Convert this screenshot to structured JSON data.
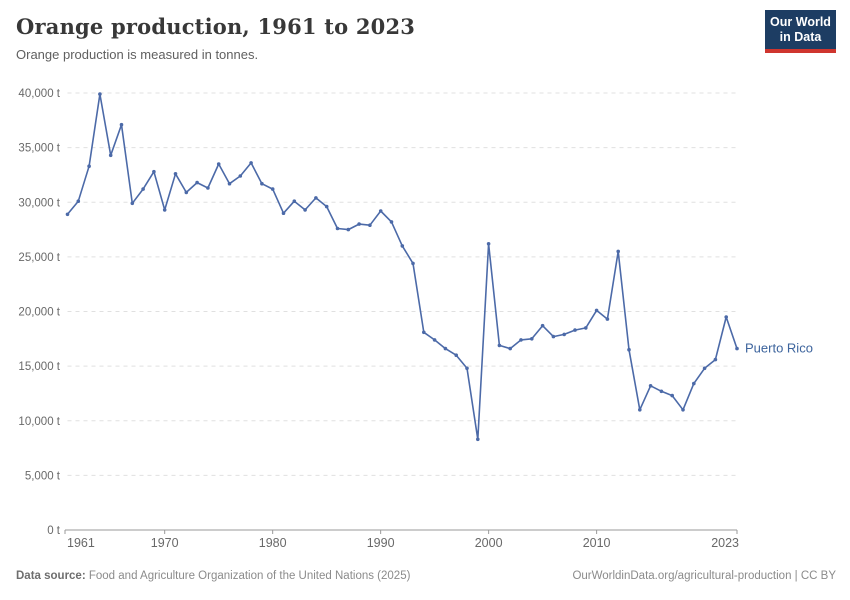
{
  "header": {
    "title": "Orange production, 1961 to 2023",
    "subtitle": "Orange production is measured in tonnes."
  },
  "logo": {
    "line1": "Our World",
    "line2": "in Data",
    "bg_color": "#1d3d63",
    "accent_color": "#cf352e"
  },
  "chart_data": {
    "type": "line",
    "title": "Orange production, 1961 to 2023",
    "unit": "t",
    "grid": "dashed-horizontal",
    "ylim": [
      0,
      40000
    ],
    "ytick_step": 5000,
    "xticks": [
      1961,
      1970,
      1980,
      1990,
      2000,
      2010,
      2023
    ],
    "x": [
      1961,
      1962,
      1963,
      1964,
      1965,
      1966,
      1967,
      1968,
      1969,
      1970,
      1971,
      1972,
      1973,
      1974,
      1975,
      1976,
      1977,
      1978,
      1979,
      1980,
      1981,
      1982,
      1983,
      1984,
      1985,
      1986,
      1987,
      1988,
      1989,
      1990,
      1991,
      1992,
      1993,
      1994,
      1995,
      1996,
      1997,
      1998,
      1999,
      2000,
      2001,
      2002,
      2003,
      2004,
      2005,
      2006,
      2007,
      2008,
      2009,
      2010,
      2011,
      2012,
      2013,
      2014,
      2015,
      2016,
      2017,
      2018,
      2019,
      2020,
      2021,
      2022,
      2023
    ],
    "series": [
      {
        "name": "Puerto Rico",
        "color": "#4c6aa8",
        "label_color": "#3d649d",
        "values": [
          28900,
          30100,
          33300,
          39900,
          34300,
          37100,
          29900,
          31200,
          32800,
          29300,
          32600,
          30900,
          31800,
          31300,
          33500,
          31700,
          32400,
          33600,
          31700,
          31200,
          29000,
          30100,
          29300,
          30400,
          29600,
          27600,
          27500,
          28000,
          27900,
          29200,
          28200,
          26000,
          24400,
          18100,
          17400,
          16600,
          16000,
          14800,
          8300,
          26200,
          16900,
          16600,
          17400,
          17500,
          18700,
          17700,
          17900,
          18300,
          18500,
          20100,
          19300,
          25500,
          16500,
          11000,
          13200,
          12700,
          12300,
          11000,
          13400,
          14800,
          15600,
          19500,
          16600
        ]
      }
    ],
    "axis_color": "#9a9a9a",
    "grid_color": "#e0e0e0",
    "tick_label_color": "#696969"
  },
  "footer": {
    "source_label": "Data source:",
    "source_text": " Food and Agriculture Organization of the United Nations (2025)",
    "link_text": "OurWorldinData.org/agricultural-production | CC BY"
  }
}
